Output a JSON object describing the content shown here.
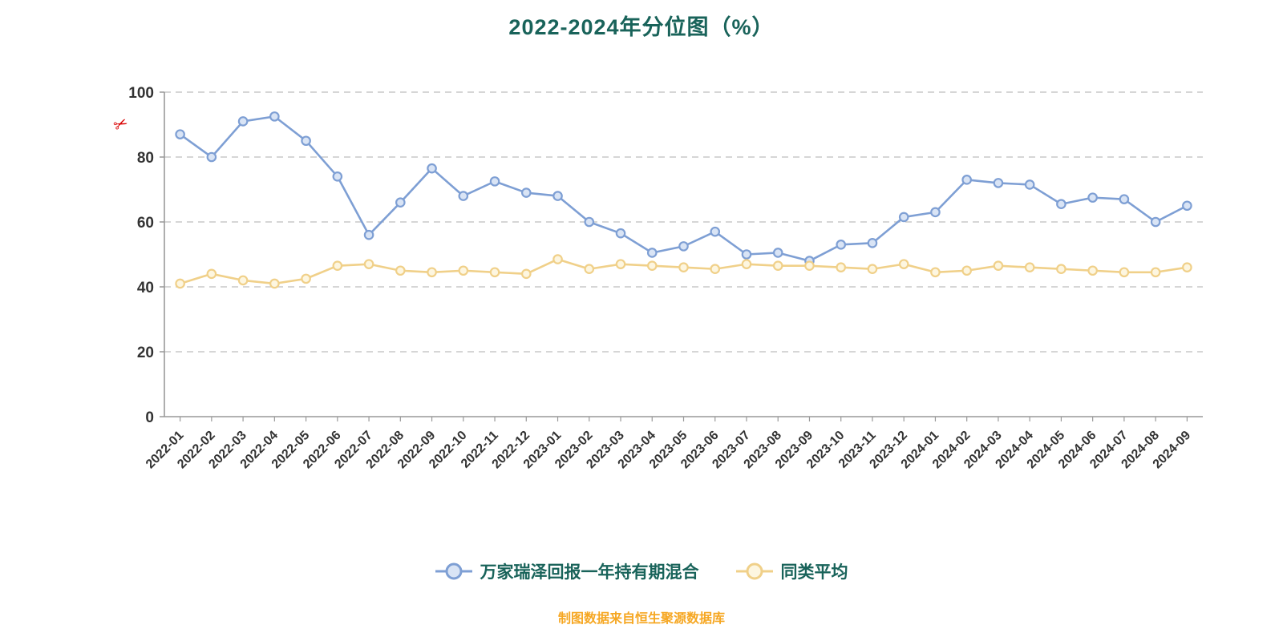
{
  "page": {
    "title": "2022-2024年分位图（%）",
    "caption": "制图数据来自恒生聚源数据库",
    "red_icon_glyph": "✂"
  },
  "style": {
    "title_color": "#19635a",
    "legend_text_color": "#19635a",
    "caption_color": "#f6a722",
    "axis_color": "#999999",
    "grid_color": "#c9c9c9",
    "tick_label_color": "#333333",
    "background": "#ffffff"
  },
  "chart_data": {
    "type": "line",
    "title": "2022-2024年分位图（%）",
    "xlabel": "",
    "ylabel": "",
    "ylim": [
      0,
      100
    ],
    "yticks": [
      0,
      20,
      40,
      60,
      80,
      100
    ],
    "grid": "horizontal-dashed",
    "legend_position": "bottom",
    "categories": [
      "2022-01",
      "2022-02",
      "2022-03",
      "2022-04",
      "2022-05",
      "2022-06",
      "2022-07",
      "2022-08",
      "2022-09",
      "2022-10",
      "2022-11",
      "2022-12",
      "2023-01",
      "2023-02",
      "2023-03",
      "2023-04",
      "2023-05",
      "2023-06",
      "2023-07",
      "2023-08",
      "2023-09",
      "2023-10",
      "2023-11",
      "2023-12",
      "2024-01",
      "2024-02",
      "2024-03",
      "2024-04",
      "2024-05",
      "2024-06",
      "2024-07",
      "2024-08",
      "2024-09"
    ],
    "series": [
      {
        "name": "万家瑞泽回报一年持有期混合",
        "color": "#7e9fd4",
        "marker_fill": "#d9e4f5",
        "values": [
          87,
          80,
          91,
          92.5,
          85,
          74,
          56,
          66,
          76.5,
          68,
          72.5,
          69,
          68,
          60,
          56.5,
          50.5,
          52.5,
          57,
          50,
          50.5,
          48,
          53,
          53.5,
          61.5,
          63,
          73,
          72,
          71.5,
          65.5,
          67.5,
          67,
          60,
          65
        ]
      },
      {
        "name": "同类平均",
        "color": "#f0d089",
        "marker_fill": "#fdf6e0",
        "values": [
          41,
          44,
          42,
          41,
          42.5,
          46.5,
          47,
          45,
          44.5,
          45,
          44.5,
          44,
          48.5,
          45.5,
          47,
          46.5,
          46,
          45.5,
          47,
          46.5,
          46.5,
          46,
          45.5,
          47,
          44.5,
          45,
          46.5,
          46,
          45.5,
          45,
          44.5,
          44.5,
          46
        ]
      }
    ]
  }
}
